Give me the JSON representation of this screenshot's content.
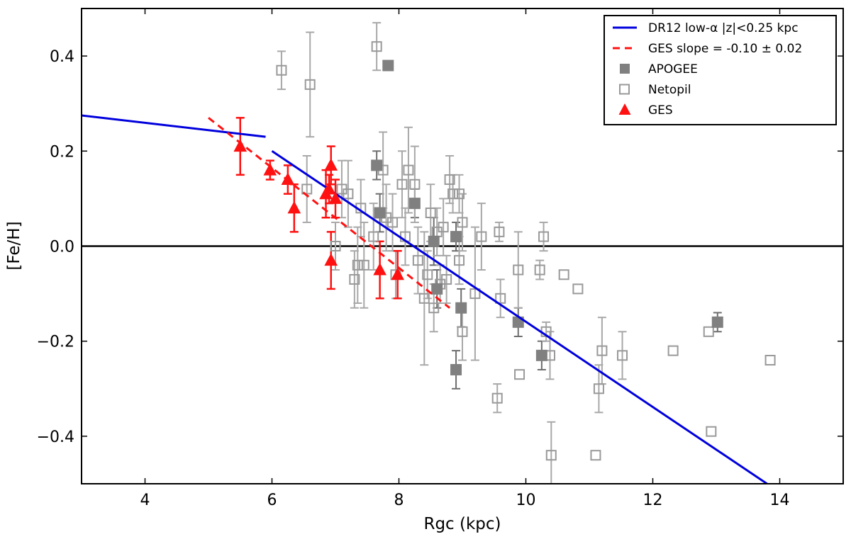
{
  "chart_data": {
    "type": "scatter",
    "xlabel": "Rgc (kpc)",
    "ylabel": "[Fe/H]",
    "xlim": [
      3,
      15
    ],
    "ylim": [
      -0.5,
      0.5
    ],
    "xticks": [
      4,
      6,
      8,
      10,
      12,
      14
    ],
    "xtick_labels": [
      "4",
      "6",
      "8",
      "10",
      "12",
      "14"
    ],
    "yticks": [
      -0.4,
      -0.2,
      0.0,
      0.2,
      0.4
    ],
    "ytick_labels": [
      "−0.4",
      "−0.2",
      "0.0",
      "0.2",
      "0.4"
    ],
    "zero_line": 0.0,
    "grid": false,
    "legend_position": "top-right",
    "lines": [
      {
        "name": "DR12 low-α |z|<0.25 kpc",
        "color": "#0000dd",
        "style": "solid",
        "segments": [
          [
            [
              3.0,
              0.275
            ],
            [
              5.9,
              0.23
            ]
          ],
          [
            [
              6.0,
              0.2
            ],
            [
              13.8,
              -0.5
            ]
          ]
        ]
      },
      {
        "name": "GES slope = -0.10 ± 0.02",
        "color": "#ff1111",
        "style": "dashed",
        "segments": [
          [
            [
              5.0,
              0.27
            ],
            [
              8.8,
              -0.13
            ]
          ]
        ]
      }
    ],
    "series": [
      {
        "name": "APOGEE",
        "marker": "filled-square",
        "color": "#808080",
        "points": [
          {
            "x": 7.83,
            "y": 0.38,
            "err": 0
          },
          {
            "x": 7.65,
            "y": 0.17,
            "err": 0.03
          },
          {
            "x": 8.25,
            "y": 0.09,
            "err": 0.03
          },
          {
            "x": 7.7,
            "y": 0.07,
            "err": 0.04
          },
          {
            "x": 8.55,
            "y": 0.01,
            "err": 0.05
          },
          {
            "x": 8.9,
            "y": 0.02,
            "err": 0.03
          },
          {
            "x": 8.6,
            "y": -0.09,
            "err": 0.04
          },
          {
            "x": 8.98,
            "y": -0.13,
            "err": 0.04
          },
          {
            "x": 8.9,
            "y": -0.26,
            "err": 0.04
          },
          {
            "x": 9.88,
            "y": -0.16,
            "err": 0.03
          },
          {
            "x": 10.25,
            "y": -0.23,
            "err": 0.03
          },
          {
            "x": 13.02,
            "y": -0.16,
            "err": 0.02
          }
        ]
      },
      {
        "name": "Netopil",
        "marker": "open-square",
        "color": "#999999",
        "points": [
          {
            "x": 6.15,
            "y": 0.37,
            "err": 0.04
          },
          {
            "x": 6.6,
            "y": 0.34,
            "err": 0.11
          },
          {
            "x": 7.65,
            "y": 0.42,
            "err": 0.05
          },
          {
            "x": 6.55,
            "y": 0.12,
            "err": 0.07
          },
          {
            "x": 7.0,
            "y": 0.0,
            "err": 0.05
          },
          {
            "x": 7.1,
            "y": 0.12,
            "err": 0.06
          },
          {
            "x": 7.2,
            "y": 0.11,
            "err": 0.07
          },
          {
            "x": 7.3,
            "y": -0.07,
            "err": 0.06
          },
          {
            "x": 7.35,
            "y": -0.04,
            "err": 0.08
          },
          {
            "x": 7.45,
            "y": -0.04,
            "err": 0.09
          },
          {
            "x": 7.4,
            "y": 0.08,
            "err": 0.06
          },
          {
            "x": 7.6,
            "y": 0.02,
            "err": 0.07
          },
          {
            "x": 7.75,
            "y": 0.16,
            "err": 0.08
          },
          {
            "x": 7.8,
            "y": 0.06,
            "err": 0.07
          },
          {
            "x": 7.9,
            "y": 0.05,
            "err": 0.06
          },
          {
            "x": 7.95,
            "y": -0.06,
            "err": 0.05
          },
          {
            "x": 8.05,
            "y": 0.13,
            "err": 0.07
          },
          {
            "x": 8.1,
            "y": 0.02,
            "err": 0.06
          },
          {
            "x": 8.15,
            "y": 0.16,
            "err": 0.09
          },
          {
            "x": 8.25,
            "y": 0.13,
            "err": 0.08
          },
          {
            "x": 8.3,
            "y": -0.03,
            "err": 0.07
          },
          {
            "x": 8.4,
            "y": -0.11,
            "err": 0.14
          },
          {
            "x": 8.45,
            "y": -0.06,
            "err": 0.05
          },
          {
            "x": 8.5,
            "y": 0.07,
            "err": 0.06
          },
          {
            "x": 8.55,
            "y": -0.13,
            "err": 0.05
          },
          {
            "x": 8.6,
            "y": 0.03,
            "err": 0.05
          },
          {
            "x": 8.65,
            "y": -0.08,
            "err": 0.04
          },
          {
            "x": 8.7,
            "y": 0.04,
            "err": 0.06
          },
          {
            "x": 8.75,
            "y": -0.07,
            "err": 0.05
          },
          {
            "x": 8.8,
            "y": 0.14,
            "err": 0.05
          },
          {
            "x": 8.85,
            "y": 0.11,
            "err": 0.04
          },
          {
            "x": 8.95,
            "y": 0.11,
            "err": 0.04
          },
          {
            "x": 9.0,
            "y": 0.05,
            "err": 0.06
          },
          {
            "x": 8.95,
            "y": -0.03,
            "err": 0.05
          },
          {
            "x": 9.0,
            "y": -0.18,
            "err": 0.06
          },
          {
            "x": 9.2,
            "y": -0.1,
            "err": 0.14
          },
          {
            "x": 9.3,
            "y": 0.02,
            "err": 0.07
          },
          {
            "x": 9.55,
            "y": -0.32,
            "err": 0.03
          },
          {
            "x": 9.58,
            "y": 0.03,
            "err": 0.02
          },
          {
            "x": 9.6,
            "y": -0.11,
            "err": 0.04
          },
          {
            "x": 9.88,
            "y": -0.05,
            "err": 0.08
          },
          {
            "x": 9.9,
            "y": -0.27,
            "err": 0
          },
          {
            "x": 10.22,
            "y": -0.05,
            "err": 0.02
          },
          {
            "x": 10.28,
            "y": 0.02,
            "err": 0.03
          },
          {
            "x": 10.32,
            "y": -0.18,
            "err": 0.02
          },
          {
            "x": 10.38,
            "y": -0.23,
            "err": 0.05
          },
          {
            "x": 10.4,
            "y": -0.44,
            "err": 0.07
          },
          {
            "x": 10.6,
            "y": -0.06,
            "err": 0
          },
          {
            "x": 10.82,
            "y": -0.09,
            "err": 0
          },
          {
            "x": 11.1,
            "y": -0.44,
            "err": 0
          },
          {
            "x": 11.15,
            "y": -0.3,
            "err": 0.05
          },
          {
            "x": 11.2,
            "y": -0.22,
            "err": 0.07
          },
          {
            "x": 11.52,
            "y": -0.23,
            "err": 0.05
          },
          {
            "x": 12.32,
            "y": -0.22,
            "err": 0
          },
          {
            "x": 12.88,
            "y": -0.18,
            "err": 0
          },
          {
            "x": 12.92,
            "y": -0.39,
            "err": 0
          },
          {
            "x": 13.85,
            "y": -0.24,
            "err": 0
          }
        ]
      },
      {
        "name": "GES",
        "marker": "triangle",
        "color": "#ff1111",
        "points": [
          {
            "x": 5.5,
            "y": 0.21,
            "err": 0.06
          },
          {
            "x": 5.97,
            "y": 0.16,
            "err": 0.02
          },
          {
            "x": 6.25,
            "y": 0.14,
            "err": 0.03
          },
          {
            "x": 6.35,
            "y": 0.08,
            "err": 0.05
          },
          {
            "x": 6.85,
            "y": 0.11,
            "err": 0.05
          },
          {
            "x": 6.9,
            "y": 0.12,
            "err": 0.03
          },
          {
            "x": 6.93,
            "y": 0.17,
            "err": 0.04
          },
          {
            "x": 7.0,
            "y": 0.1,
            "err": 0.04
          },
          {
            "x": 6.93,
            "y": -0.03,
            "err": 0.06
          },
          {
            "x": 7.7,
            "y": -0.05,
            "err": 0.06
          },
          {
            "x": 7.98,
            "y": -0.06,
            "err": 0.05
          }
        ]
      }
    ]
  },
  "legend": {
    "items": [
      {
        "label": "DR12 low-α |z|<0.25 kpc",
        "kind": "line",
        "color": "#0000dd"
      },
      {
        "label": "GES slope = -0.10 ± 0.02",
        "kind": "dash",
        "color": "#ff1111"
      },
      {
        "label": "APOGEE",
        "kind": "filled-square",
        "color": "#808080"
      },
      {
        "label": "Netopil",
        "kind": "open-square",
        "color": "#999999"
      },
      {
        "label": "GES",
        "kind": "triangle",
        "color": "#ff1111"
      }
    ]
  }
}
